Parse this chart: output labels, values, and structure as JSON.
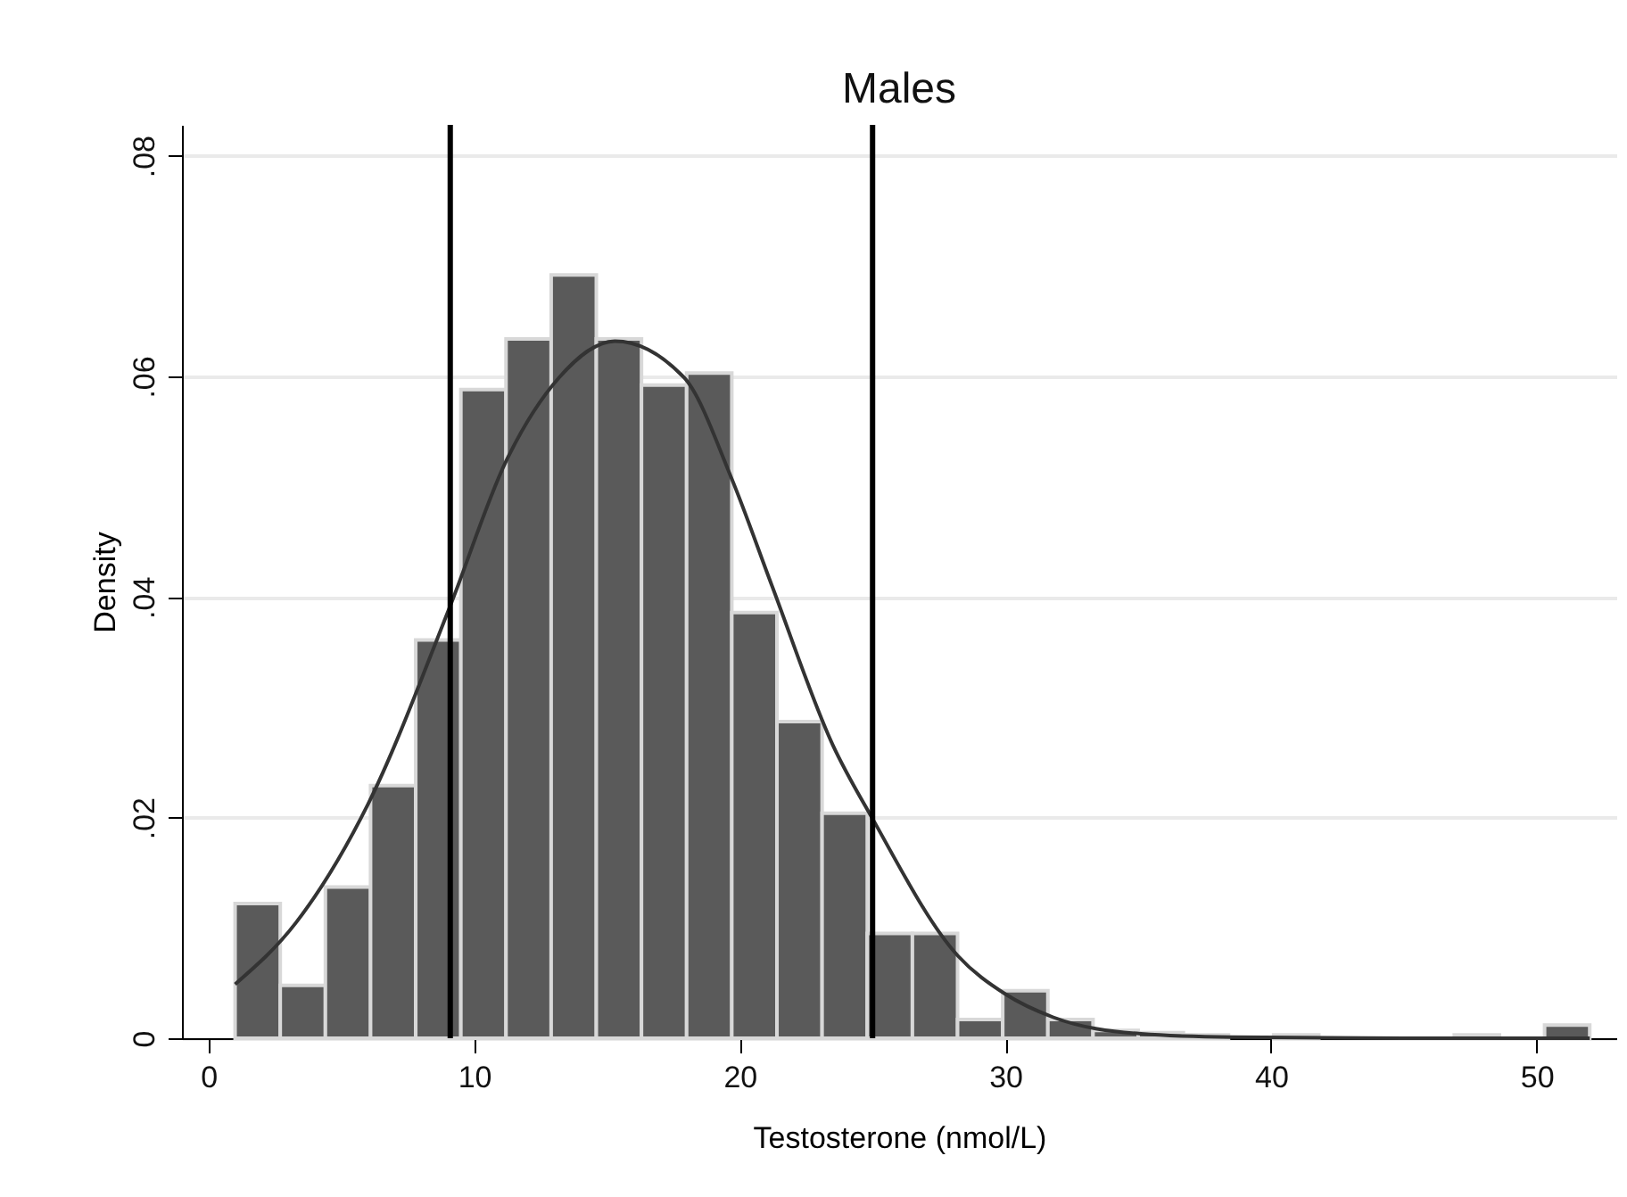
{
  "chart_data": {
    "type": "histogram",
    "title": "Males",
    "xlabel": "Testosterone (nmol/L)",
    "ylabel": "Density",
    "bins": [
      1,
      2.7,
      4.4,
      6.1,
      7.8,
      9.5,
      11.2,
      12.9,
      14.6,
      16.3,
      18,
      19.7,
      21.4,
      23.1,
      24.8,
      26.5,
      28.2,
      29.9,
      31.6,
      33.3,
      35,
      36.7,
      38.4,
      40.1,
      41.8,
      43.5,
      45.2,
      46.9,
      48.6,
      50.3,
      52
    ],
    "values": [
      0.0122,
      0.0048,
      0.0137,
      0.0229,
      0.0361,
      0.0588,
      0.0634,
      0.0692,
      0.0634,
      0.0592,
      0.0603,
      0.0386,
      0.0287,
      0.0204,
      0.0095,
      0.0095,
      0.0017,
      0.0043,
      0.0017,
      0.0007,
      0.0005,
      0.0003,
      0,
      0.0003,
      0,
      0,
      0,
      0.0003,
      0,
      0.0012
    ],
    "color": "#5a5a5a",
    "series": [
      {
        "type": "line",
        "color": "#333333",
        "x": [
          1,
          3.3,
          6,
          9.1,
          11.2,
          13.2,
          15.3,
          17.9,
          19.7,
          21.2,
          23.5,
          25,
          28.2,
          30,
          31.8,
          35.1,
          38.5,
          45,
          52
        ],
        "values": [
          0.0049,
          0.0105,
          0.0212,
          0.0392,
          0.0523,
          0.0599,
          0.0632,
          0.0599,
          0.0507,
          0.0411,
          0.0266,
          0.0199,
          0.0075,
          0.004,
          0.0019,
          0.0004,
          0.0001,
          0,
          0
        ]
      }
    ],
    "ref_lines": [
      {
        "axis": "x",
        "value": 9.1,
        "color": "#000000"
      },
      {
        "axis": "x",
        "value": 25,
        "color": "#000000"
      }
    ],
    "xlim": [
      -1,
      53
    ],
    "xticks": [
      0,
      10,
      20,
      30,
      40,
      50
    ],
    "ylim": [
      0,
      0.0828
    ],
    "yticks": [
      {
        "value": 0,
        "label": "0"
      },
      {
        "value": 0.02,
        "label": ".02"
      },
      {
        "value": 0.04,
        "label": ".04"
      },
      {
        "value": 0.06,
        "label": ".06"
      },
      {
        "value": 0.08,
        "label": ".08"
      }
    ],
    "grid": "y"
  }
}
